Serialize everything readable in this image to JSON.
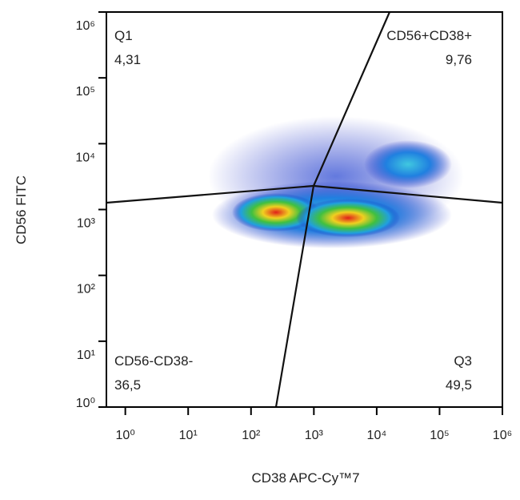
{
  "chart_data": {
    "type": "quadrant-scatter",
    "x_label": "CD38 APC-Cy™7",
    "y_label": "CD56 FITC",
    "xscale": "log",
    "yscale": "log",
    "xlim": [
      0.5,
      1000000
    ],
    "ylim": [
      1,
      1000000
    ],
    "xticks": [
      {
        "value": 1,
        "label": "10⁰"
      },
      {
        "value": 10,
        "label": "10¹"
      },
      {
        "value": 100,
        "label": "10²"
      },
      {
        "value": 1000,
        "label": "10³"
      },
      {
        "value": 10000,
        "label": "10⁴"
      },
      {
        "value": 100000,
        "label": "10⁵"
      },
      {
        "value": 1000000,
        "label": "10⁶"
      }
    ],
    "yticks": [
      {
        "value": 1,
        "label": "10⁰"
      },
      {
        "value": 10,
        "label": "10¹"
      },
      {
        "value": 100,
        "label": "10²"
      },
      {
        "value": 1000,
        "label": "10³"
      },
      {
        "value": 10000,
        "label": "10⁴"
      },
      {
        "value": 100000,
        "label": "10⁵"
      },
      {
        "value": 1000000,
        "label": "10⁶"
      }
    ],
    "quadrants": [
      {
        "name": "Q1",
        "value": 4.31,
        "value_label": "4,31",
        "corner": "top-left"
      },
      {
        "name": "CD56+CD38+",
        "value": 9.76,
        "value_label": "9,76",
        "corner": "top-right"
      },
      {
        "name": "CD56-CD38-",
        "value": 36.5,
        "value_label": "36,5",
        "corner": "bottom-left"
      },
      {
        "name": "Q3",
        "value": 49.5,
        "value_label": "49,5",
        "corner": "bottom-right"
      }
    ]
  }
}
